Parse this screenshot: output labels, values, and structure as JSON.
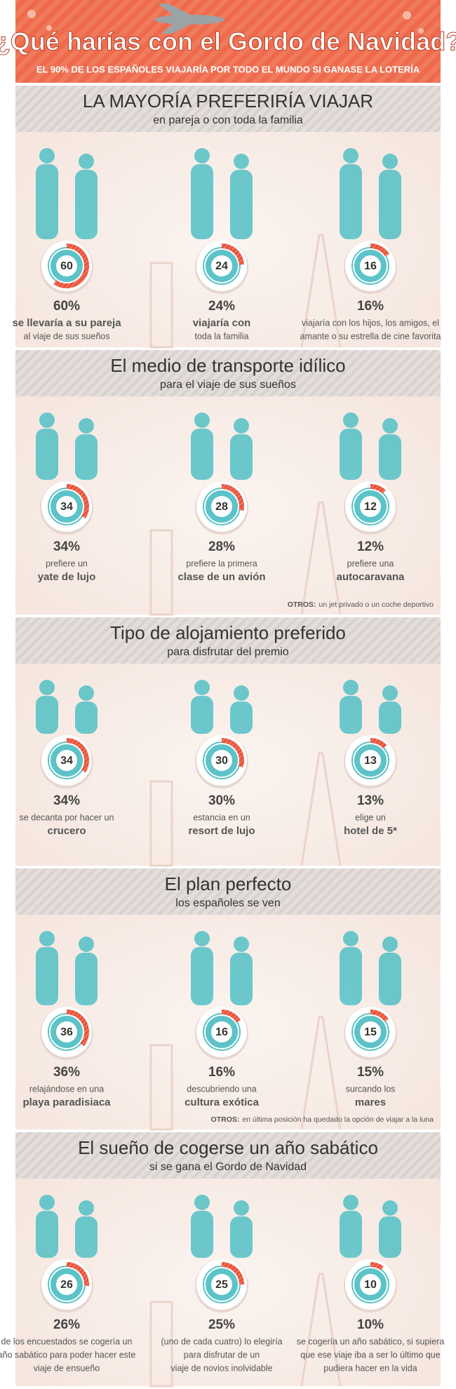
{
  "header": {
    "title": "¿Qué harías con el Gordo de Navidad?",
    "subtitle": "EL 90% DE LOS ESPAÑOLES VIAJARÍA POR TODO EL MUNDO SI GANASE LA LOTERÍA"
  },
  "sections": [
    {
      "title": "LA MAYORÍA PREFERIRÍA VIAJAR",
      "subtitle": "en pareja o con toda la familia",
      "items": [
        {
          "value": 60,
          "value_label": "60%",
          "lines": [
            {
              "text": "se llevaría a su pareja",
              "bold": true
            },
            "al viaje de sus sueños"
          ]
        },
        {
          "value": 24,
          "value_label": "24%",
          "lines": [
            {
              "text": "viajaría con",
              "bold": true
            },
            "toda la familia"
          ]
        },
        {
          "value": 16,
          "value_label": "16%",
          "lines": [
            "viajaría con los hijos, los amigos, el",
            "amante o su estrella de cine favorita"
          ]
        }
      ]
    },
    {
      "title": "El medio de transporte idílico",
      "subtitle": "para el viaje de sus sueños",
      "items": [
        {
          "value": 34,
          "value_label": "34%",
          "lines": [
            "prefiere un",
            {
              "text": "yate de lujo",
              "bold": true
            }
          ]
        },
        {
          "value": 28,
          "value_label": "28%",
          "lines": [
            "prefiere la primera",
            {
              "text": "clase de un avión",
              "bold": true
            }
          ]
        },
        {
          "value": 12,
          "value_label": "12%",
          "lines": [
            "prefiere una",
            {
              "text": "autocaravana",
              "bold": true
            }
          ]
        }
      ],
      "note": {
        "label": "OTROS:",
        "text": "un jet privado o un coche deportivo"
      }
    },
    {
      "title": "Tipo de alojamiento preferido",
      "subtitle": "para disfrutar del premio",
      "items": [
        {
          "value": 34,
          "value_label": "34%",
          "lines": [
            "se decanta por hacer un",
            {
              "text": "crucero",
              "bold": true
            }
          ]
        },
        {
          "value": 30,
          "value_label": "30%",
          "lines": [
            "estancia en un",
            {
              "text": "resort de lujo",
              "bold": true
            }
          ]
        },
        {
          "value": 13,
          "value_label": "13%",
          "lines": [
            "elige un",
            {
              "text": "hotel de 5*",
              "bold": true
            }
          ]
        }
      ]
    },
    {
      "title": "El plan perfecto",
      "subtitle": "los españoles se ven",
      "items": [
        {
          "value": 36,
          "value_label": "36%",
          "lines": [
            "relajándose en una",
            {
              "text": "playa paradisiaca",
              "bold": true
            }
          ]
        },
        {
          "value": 16,
          "value_label": "16%",
          "lines": [
            "descubriendo una",
            {
              "text": "cultura exótica",
              "bold": true
            }
          ]
        },
        {
          "value": 15,
          "value_label": "15%",
          "lines": [
            "surcando los",
            {
              "text": "mares",
              "bold": true
            }
          ]
        }
      ],
      "note": {
        "label": "OTROS:",
        "text": "en última posición ha quedado la opción de viajar a la luna"
      }
    },
    {
      "title": "El sueño de cogerse un año sabático",
      "subtitle": "si se gana el Gordo de Navidad",
      "items": [
        {
          "value": 26,
          "value_label": "26%",
          "lines": [
            "de los encuestados se cogería un",
            "año sabático para poder hacer este",
            "viaje de ensueño"
          ]
        },
        {
          "value": 25,
          "value_label": "25%",
          "lines": [
            "(uno de cada cuatro) lo elegiría",
            "para disfrutar de un",
            "viaje de novios inolvidable"
          ]
        },
        {
          "value": 10,
          "value_label": "10%",
          "lines": [
            "se cogería un año sabático, si supiera",
            "que ese viaje iba a ser lo último que",
            "pudiera hacer en la vida"
          ]
        }
      ]
    }
  ]
}
